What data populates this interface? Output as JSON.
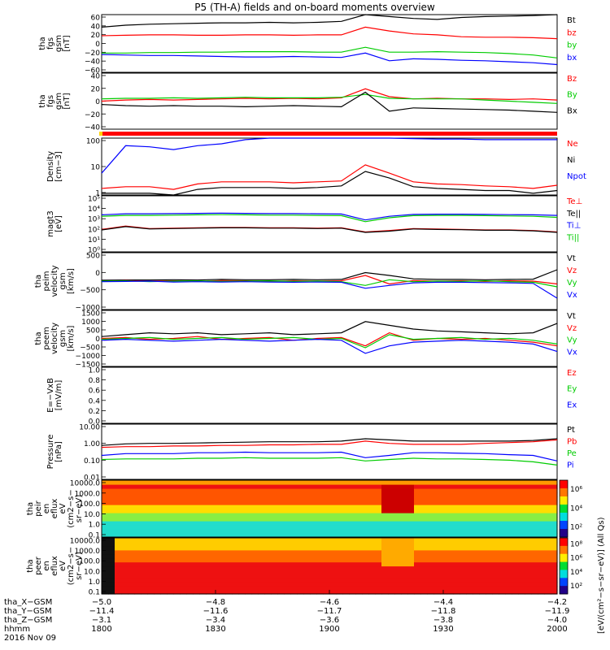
{
  "title": "P5 (TH-A) fields and on-board moments overview",
  "colors": {
    "black": "#000000",
    "red": "#ff0000",
    "green": "#00cc00",
    "blue": "#0000ff",
    "yellow": "#ffd400"
  },
  "chart_data": [
    {
      "type": "line",
      "panel": "fgs-gsm",
      "ylabel": [
        "tha",
        "fgs",
        "gsm",
        "[nT]"
      ],
      "ylim": [
        -60,
        60
      ],
      "yticks": [
        "60",
        "40",
        "20",
        "0",
        "−20",
        "−40",
        "−60"
      ],
      "legend": [
        "Bt",
        "bz",
        "by",
        "bx"
      ],
      "series": [
        {
          "name": "Bt",
          "color": "black",
          "values": [
            34,
            38,
            40,
            41,
            42,
            43,
            43,
            44,
            43,
            44,
            46,
            60,
            56,
            52,
            50,
            54,
            56,
            57,
            58,
            60
          ]
        },
        {
          "name": "bz",
          "color": "red",
          "values": [
            16,
            17,
            18,
            18,
            17,
            17,
            18,
            18,
            17,
            18,
            18,
            34,
            26,
            20,
            18,
            14,
            13,
            13,
            12,
            10
          ]
        },
        {
          "name": "by",
          "color": "green",
          "values": [
            -20,
            -20,
            -19,
            -19,
            -18,
            -18,
            -17,
            -17,
            -17,
            -18,
            -18,
            -8,
            -18,
            -18,
            -17,
            -18,
            -19,
            -21,
            -24,
            -30
          ]
        },
        {
          "name": "bx",
          "color": "blue",
          "values": [
            -23,
            -24,
            -25,
            -25,
            -26,
            -27,
            -28,
            -28,
            -27,
            -28,
            -29,
            -20,
            -36,
            -32,
            -33,
            -35,
            -36,
            -38,
            -40,
            -44
          ]
        }
      ]
    },
    {
      "type": "line",
      "panel": "fgs-gsm-2",
      "ylabel": [
        "tha",
        "fgs",
        "gsm",
        "[nT]"
      ],
      "ylim": [
        -50,
        50
      ],
      "yticks": [
        "40",
        "20",
        "0",
        "−20",
        "−40"
      ],
      "legend": [
        "Bz",
        "By",
        "Bx"
      ],
      "series": [
        {
          "name": "Bz",
          "color": "red",
          "values": [
            0,
            2,
            3,
            2,
            3,
            4,
            5,
            4,
            5,
            4,
            6,
            22,
            8,
            4,
            5,
            4,
            4,
            3,
            4,
            2
          ]
        },
        {
          "name": "By",
          "color": "green",
          "values": [
            4,
            5,
            5,
            6,
            5,
            6,
            7,
            6,
            6,
            6,
            7,
            12,
            5,
            4,
            4,
            4,
            2,
            0,
            -2,
            -4
          ]
        },
        {
          "name": "Bx",
          "color": "black",
          "values": [
            -6,
            -8,
            -9,
            -8,
            -9,
            -9,
            -10,
            -9,
            -8,
            -9,
            -10,
            16,
            -18,
            -12,
            -13,
            -14,
            -15,
            -16,
            -18,
            -20
          ]
        }
      ]
    },
    {
      "type": "line",
      "panel": "density",
      "ylabel": [
        "Density",
        "[cm−3]"
      ],
      "scale": "log",
      "ylim": [
        0.5,
        200
      ],
      "yticks": [
        "100",
        "10",
        "1"
      ],
      "legend": [
        "Ne",
        "Ni",
        "Npot"
      ],
      "series": [
        {
          "name": "Ne",
          "color": "red",
          "values": [
            1,
            1.2,
            1.2,
            0.9,
            1.6,
            2,
            2,
            2,
            1.8,
            2,
            2.2,
            12,
            5,
            2,
            1.6,
            1.5,
            1.3,
            1.2,
            1,
            1.4
          ]
        },
        {
          "name": "Ni",
          "color": "black",
          "values": [
            0.6,
            0.6,
            0.6,
            0.5,
            0.9,
            1.1,
            1.1,
            1.1,
            1,
            1.1,
            1.3,
            6,
            3,
            1.2,
            1,
            0.9,
            0.8,
            0.8,
            0.6,
            0.8
          ]
        },
        {
          "name": "Npot",
          "color": "blue",
          "values": [
            5,
            90,
            80,
            60,
            90,
            110,
            170,
            200,
            200,
            200,
            200,
            200,
            200,
            190,
            180,
            180,
            170,
            170,
            170,
            170
          ]
        }
      ]
    },
    {
      "type": "line",
      "panel": "temperature",
      "ylabel": [
        "magt3",
        "[eV]"
      ],
      "scale": "log",
      "ylim": [
        1,
        100000
      ],
      "yticks": [
        "10⁵",
        "10⁴",
        "10³",
        "10²",
        "10¹",
        "10⁰"
      ],
      "legend": [
        "Te⊥",
        "Te||",
        "Ti⊥",
        "Ti||"
      ],
      "series": [
        {
          "name": "Te⊥",
          "color": "red",
          "values": [
            100,
            200,
            120,
            130,
            140,
            150,
            150,
            140,
            140,
            130,
            140,
            60,
            80,
            120,
            110,
            100,
            90,
            90,
            80,
            60
          ]
        },
        {
          "name": "Te||",
          "color": "black",
          "values": [
            90,
            180,
            110,
            120,
            130,
            140,
            140,
            130,
            130,
            120,
            130,
            55,
            70,
            110,
            100,
            95,
            85,
            85,
            75,
            55
          ]
        },
        {
          "name": "Ti⊥",
          "color": "blue",
          "values": [
            2000,
            2500,
            2500,
            2600,
            2700,
            2800,
            2700,
            2600,
            2600,
            2500,
            2400,
            700,
            1500,
            2200,
            2300,
            2300,
            2200,
            2100,
            2000,
            1800
          ]
        },
        {
          "name": "Ti||",
          "color": "green",
          "values": [
            1500,
            1800,
            1800,
            1900,
            2000,
            2100,
            2000,
            1900,
            1900,
            1800,
            1700,
            500,
            1100,
            1700,
            1800,
            1800,
            1700,
            1600,
            1500,
            1200
          ]
        }
      ]
    },
    {
      "type": "line",
      "panel": "peim-velocity",
      "ylabel": [
        "tha",
        "peim",
        "velocity",
        "gsm",
        "[km/s]"
      ],
      "ylim": [
        -1000,
        1000
      ],
      "yticks": [
        "500",
        "0",
        "−500",
        "−1000"
      ],
      "legend": [
        "Vt",
        "Vz",
        "Vy",
        "Vx"
      ],
      "series": [
        {
          "name": "Vt",
          "color": "black",
          "values": [
            30,
            40,
            40,
            50,
            40,
            60,
            50,
            50,
            60,
            50,
            60,
            300,
            200,
            80,
            60,
            60,
            50,
            60,
            70,
            400
          ]
        },
        {
          "name": "Vz",
          "color": "red",
          "values": [
            -10,
            20,
            0,
            10,
            -10,
            20,
            10,
            -10,
            10,
            0,
            10,
            200,
            -100,
            20,
            0,
            10,
            -10,
            10,
            0,
            -100
          ]
        },
        {
          "name": "Vy",
          "color": "green",
          "values": [
            0,
            10,
            -20,
            0,
            10,
            -10,
            0,
            10,
            -10,
            0,
            -20,
            -150,
            50,
            -20,
            0,
            -10,
            10,
            -20,
            -40,
            -200
          ]
        },
        {
          "name": "Vx",
          "color": "blue",
          "values": [
            -20,
            -10,
            0,
            -30,
            -20,
            -30,
            -20,
            -30,
            -40,
            -30,
            -40,
            -250,
            -150,
            -60,
            -40,
            -40,
            -50,
            -60,
            -80,
            -600
          ]
        }
      ]
    },
    {
      "type": "line",
      "panel": "peem-velocity",
      "ylabel": [
        "tha",
        "peem",
        "velocity",
        "gsm",
        "[km/s]"
      ],
      "ylim": [
        -1500,
        1500
      ],
      "yticks": [
        "1500",
        "1000",
        "500",
        "0",
        "−500",
        "−1000",
        "−1500"
      ],
      "legend": [
        "Vt",
        "Vz",
        "Vy",
        "Vx"
      ],
      "series": [
        {
          "name": "Vt",
          "color": "black",
          "values": [
            100,
            200,
            300,
            250,
            300,
            200,
            250,
            300,
            200,
            250,
            300,
            900,
            700,
            500,
            400,
            350,
            300,
            250,
            300,
            800
          ]
        },
        {
          "name": "Vz",
          "color": "red",
          "values": [
            0,
            50,
            -50,
            0,
            100,
            -50,
            0,
            50,
            -100,
            0,
            50,
            -400,
            300,
            -100,
            0,
            -50,
            0,
            -100,
            -200,
            -400
          ]
        },
        {
          "name": "Vy",
          "color": "green",
          "values": [
            -50,
            0,
            50,
            -50,
            0,
            50,
            -50,
            0,
            50,
            -50,
            0,
            -500,
            200,
            -50,
            0,
            50,
            -50,
            0,
            -100,
            -300
          ]
        },
        {
          "name": "Vx",
          "color": "blue",
          "values": [
            -100,
            -50,
            -100,
            -150,
            -100,
            -50,
            -100,
            -150,
            -100,
            -50,
            -100,
            -800,
            -400,
            -200,
            -150,
            -100,
            -150,
            -200,
            -300,
            -700
          ]
        }
      ]
    },
    {
      "type": "line",
      "panel": "efield",
      "ylabel": [
        "E=−VxB",
        "[mV/m]"
      ],
      "ylim": [
        0,
        1
      ],
      "yticks": [
        "1.0",
        "0.8",
        "0.6",
        "0.4",
        "0.2",
        "0.0"
      ],
      "legend": [
        "Ez",
        "Ey",
        "Ex"
      ],
      "series": []
    },
    {
      "type": "line",
      "panel": "pressure",
      "ylabel": [
        "Pressure",
        "[nPa]"
      ],
      "scale": "log",
      "ylim": [
        0.01,
        10
      ],
      "yticks": [
        "10.00",
        "1.00",
        "0.10",
        "0.01"
      ],
      "legend": [
        "Pt",
        "Pb",
        "Pe",
        "Pi"
      ],
      "series": [
        {
          "name": "Pt",
          "color": "black",
          "values": [
            0.7,
            0.85,
            0.9,
            0.9,
            0.95,
            1.0,
            1.05,
            1.1,
            1.1,
            1.1,
            1.2,
            1.6,
            1.4,
            1.2,
            1.2,
            1.2,
            1.2,
            1.2,
            1.3,
            1.6
          ]
        },
        {
          "name": "Pb",
          "color": "red",
          "values": [
            0.55,
            0.6,
            0.6,
            0.65,
            0.65,
            0.7,
            0.7,
            0.75,
            0.75,
            0.8,
            0.8,
            1.2,
            0.9,
            0.8,
            0.8,
            0.8,
            0.9,
            1.0,
            1.1,
            1.4
          ]
        },
        {
          "name": "Pe",
          "color": "green",
          "values": [
            0.12,
            0.13,
            0.13,
            0.13,
            0.14,
            0.14,
            0.15,
            0.14,
            0.14,
            0.14,
            0.15,
            0.1,
            0.12,
            0.14,
            0.13,
            0.13,
            0.12,
            0.11,
            0.09,
            0.06
          ]
        },
        {
          "name": "Pi",
          "color": "blue",
          "values": [
            0.2,
            0.25,
            0.25,
            0.25,
            0.28,
            0.28,
            0.3,
            0.28,
            0.28,
            0.28,
            0.3,
            0.15,
            0.2,
            0.28,
            0.28,
            0.26,
            0.25,
            0.22,
            0.2,
            0.1
          ]
        }
      ]
    },
    {
      "type": "heatmap",
      "panel": "peir-spectrogram",
      "ylabel": [
        "tha",
        "peir",
        "en",
        "eflux",
        "eV",
        "(cm2−s−",
        "sr−eV)"
      ],
      "scale": "log",
      "ylim": [
        0.1,
        30000
      ],
      "yticks": [
        "10000.0",
        "1000.0",
        "100.0",
        "10.0",
        "1.0",
        "0.1"
      ],
      "colorbar_ticks": [
        "10⁶",
        "10⁴",
        "10²"
      ]
    },
    {
      "type": "heatmap",
      "panel": "peer-spectrogram",
      "ylabel": [
        "tha",
        "peer",
        "en",
        "eflux",
        "eV",
        "(cm2−s−",
        "sr−eV)"
      ],
      "scale": "log",
      "ylim": [
        0.1,
        30000
      ],
      "yticks": [
        "10000.0",
        "1000.0",
        "100.0",
        "10.0",
        "1.0",
        "0.1"
      ],
      "colorbar_ticks": [
        "10⁸",
        "10⁶",
        "10⁴",
        "10²"
      ]
    }
  ],
  "colorbar_label": "[eV/(cm²−s−sr−eV)]  (All Qs)",
  "xaxis": {
    "rows": [
      {
        "label": "tha_X−GSM",
        "values": [
          "−5.0",
          "−4.8",
          "−4.6",
          "−4.4",
          "−4.2"
        ]
      },
      {
        "label": "tha_Y−GSM",
        "values": [
          "−11.4",
          "−11.6",
          "−11.7",
          "−11.8",
          "−11.9"
        ]
      },
      {
        "label": "tha_Z−GSM",
        "values": [
          "−3.1",
          "−3.4",
          "−3.6",
          "−3.8",
          "−4.0"
        ]
      },
      {
        "label": "hhmm",
        "values": [
          "1800",
          "1830",
          "1900",
          "1930",
          "2000"
        ]
      }
    ],
    "date": "2016 Nov 09"
  }
}
